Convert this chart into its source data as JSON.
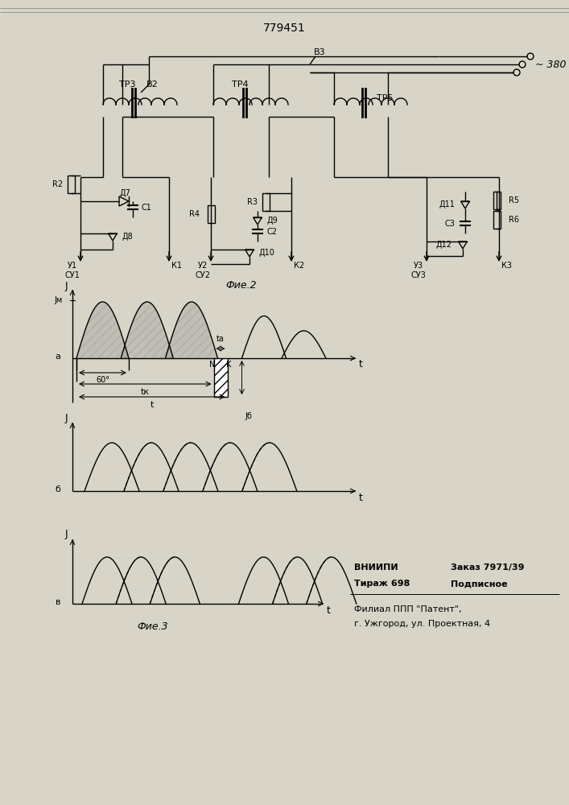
{
  "title": "779451",
  "bg_color": "#d8d4c8",
  "fig_width": 7.07,
  "fig_height": 10.0,
  "fig2_label": "Фие.2",
  "fig3_label": "Фие.3",
  "bottom_text_line1a": "ВНИИПИ",
  "bottom_text_line1b": "Заказ 7971/39",
  "bottom_text_line2a": "Тираж 698",
  "bottom_text_line2b": "Подписное",
  "bottom_text_line3": "Филиал ППП \"Патент\",",
  "bottom_text_line4": "г. Ужгород, ул. Проектная, 4"
}
